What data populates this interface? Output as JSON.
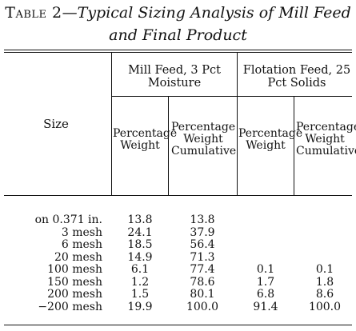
{
  "caption": {
    "label": "Table 2",
    "title": "Typical Sizing Analysis of Mill Feed and Final Product"
  },
  "headers": {
    "size": "Size",
    "group1": "Mill Feed, 3 Pct Moisture",
    "group2": "Flotation Feed, 25 Pct Solids",
    "pct_weight": "Percentage Weight",
    "pct_cum": "Percentage Weight Cumulative"
  },
  "rows": [
    {
      "size": "on 0.371 in.",
      "mf_pct": "13.8",
      "mf_cum": "13.8",
      "ff_pct": "",
      "ff_cum": ""
    },
    {
      "size": "3 mesh",
      "mf_pct": "24.1",
      "mf_cum": "37.9",
      "ff_pct": "",
      "ff_cum": ""
    },
    {
      "size": "6 mesh",
      "mf_pct": "18.5",
      "mf_cum": "56.4",
      "ff_pct": "",
      "ff_cum": ""
    },
    {
      "size": "20 mesh",
      "mf_pct": "14.9",
      "mf_cum": "71.3",
      "ff_pct": "",
      "ff_cum": ""
    },
    {
      "size": "100 mesh",
      "mf_pct": "6.1",
      "mf_cum": "77.4",
      "ff_pct": "0.1",
      "ff_cum": "0.1"
    },
    {
      "size": "150 mesh",
      "mf_pct": "1.2",
      "mf_cum": "78.6",
      "ff_pct": "1.7",
      "ff_cum": "1.8"
    },
    {
      "size": "200 mesh",
      "mf_pct": "1.5",
      "mf_cum": "80.1",
      "ff_pct": "6.8",
      "ff_cum": "8.6"
    },
    {
      "size": "−200 mesh",
      "mf_pct": "19.9",
      "mf_cum": "100.0",
      "ff_pct": "91.4",
      "ff_cum": "100.0"
    }
  ]
}
